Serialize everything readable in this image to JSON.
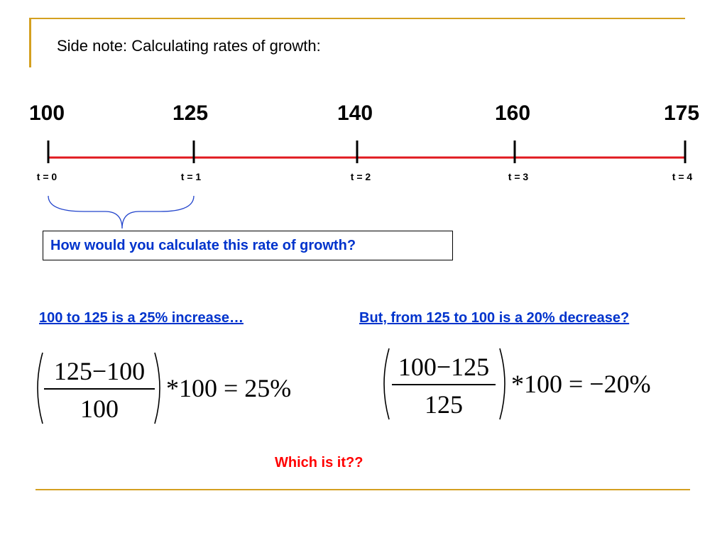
{
  "title": "Side note: Calculating rates of growth:",
  "timeline": {
    "values": [
      "100",
      "125",
      "140",
      "160",
      "175"
    ],
    "labels": [
      "t = 0",
      "t = 1",
      "t = 2",
      "t = 3",
      "t = 4"
    ],
    "line_color": "#e0191f"
  },
  "question": "How would you calculate this rate of growth?",
  "left": {
    "caption": "100 to 125 is a 25% increase…",
    "numerator": "125−100",
    "denominator": "100",
    "tail": "*100 = 25%"
  },
  "right": {
    "caption": "But, from 125 to 100 is a 20% decrease?",
    "numerator": "100−125",
    "denominator": "125",
    "tail": "*100 = −20%"
  },
  "closing": "Which is it??",
  "colors": {
    "accent_gold": "#d4a020",
    "link_blue": "#0033cc",
    "emphasis_red": "#ff0000"
  }
}
